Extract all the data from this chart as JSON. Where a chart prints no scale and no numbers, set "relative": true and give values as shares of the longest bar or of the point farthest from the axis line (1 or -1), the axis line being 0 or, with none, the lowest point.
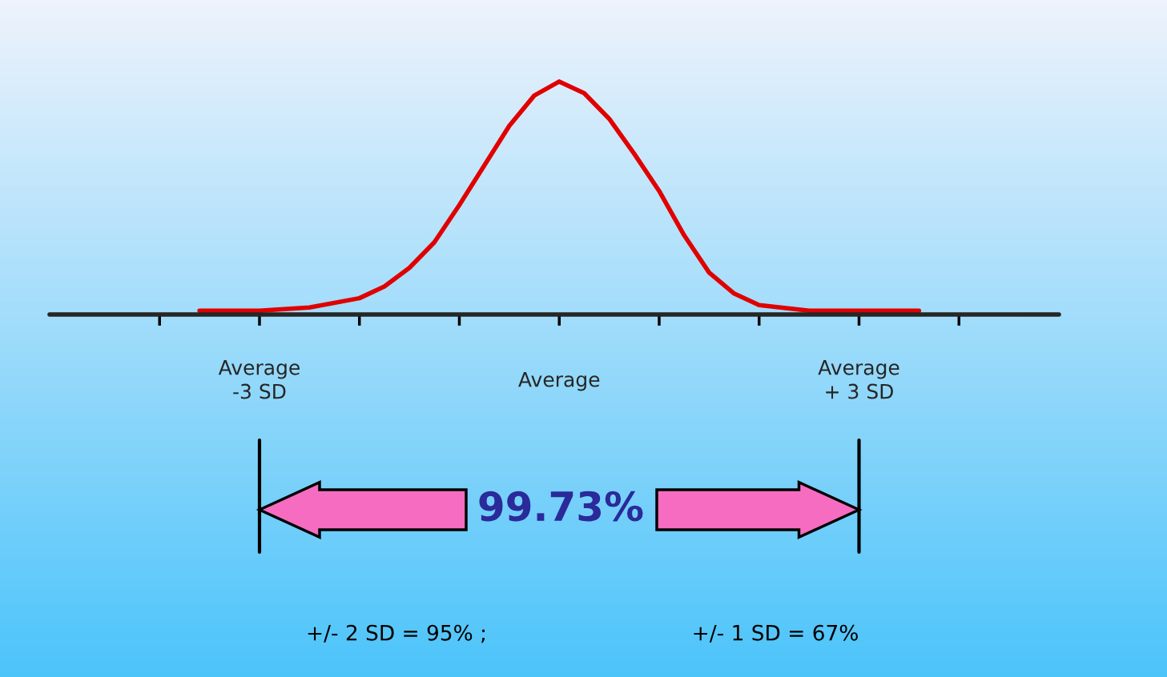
{
  "chart_data": {
    "type": "line",
    "relative": true,
    "x": [
      -3.6,
      -3,
      -2.5,
      -2,
      -1.75,
      -1.5,
      -1.25,
      -1,
      -0.75,
      -0.5,
      -0.25,
      0,
      0.25,
      0.5,
      0.75,
      1,
      1.25,
      1.5,
      1.75,
      2,
      2.5,
      3,
      3.6
    ],
    "series": [
      {
        "color": "#e00000",
        "values": [
          0.016,
          0.016,
          0.03,
          0.07,
          0.12,
          0.2,
          0.31,
          0.47,
          0.64,
          0.81,
          0.94,
          1.0,
          0.95,
          0.84,
          0.69,
          0.53,
          0.34,
          0.18,
          0.09,
          0.04,
          0.016,
          0.016,
          0.016
        ]
      }
    ],
    "xlim": [
      -5.1,
      5.0
    ],
    "xticks": [
      {
        "value": -4,
        "label": null
      },
      {
        "value": -3,
        "label": "Average\n-3 SD"
      },
      {
        "value": -2,
        "label": null
      },
      {
        "value": -1,
        "label": null
      },
      {
        "value": 0,
        "label": "Average"
      },
      {
        "value": 1,
        "label": null
      },
      {
        "value": 2,
        "label": null
      },
      {
        "value": 3,
        "label": "Average\n+ 3 SD"
      },
      {
        "value": 4,
        "label": null
      }
    ],
    "tick_labels": "x",
    "grid": false,
    "legend": false,
    "marker": "none",
    "line_style": "solid",
    "annotations": [
      "99.73%",
      "+/- 2 SD = 95% ;",
      "+/- 1 SD = 67%"
    ]
  }
}
